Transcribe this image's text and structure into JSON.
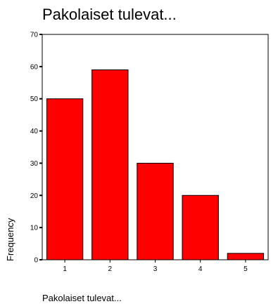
{
  "chart_data": {
    "type": "bar",
    "title": "Pakolaiset tulevat...",
    "xlabel": "Pakolaiset tulevat...",
    "ylabel": "Frequency",
    "categories": [
      "1",
      "2",
      "3",
      "4",
      "5"
    ],
    "values": [
      50,
      59,
      30,
      20,
      2
    ],
    "ylim": [
      0,
      70
    ],
    "yticks": [
      0,
      10,
      20,
      30,
      40,
      50,
      60,
      70
    ],
    "grid": false,
    "legend": "none",
    "bar_color": "#ff0000",
    "bar_edge_color": "#000000"
  }
}
